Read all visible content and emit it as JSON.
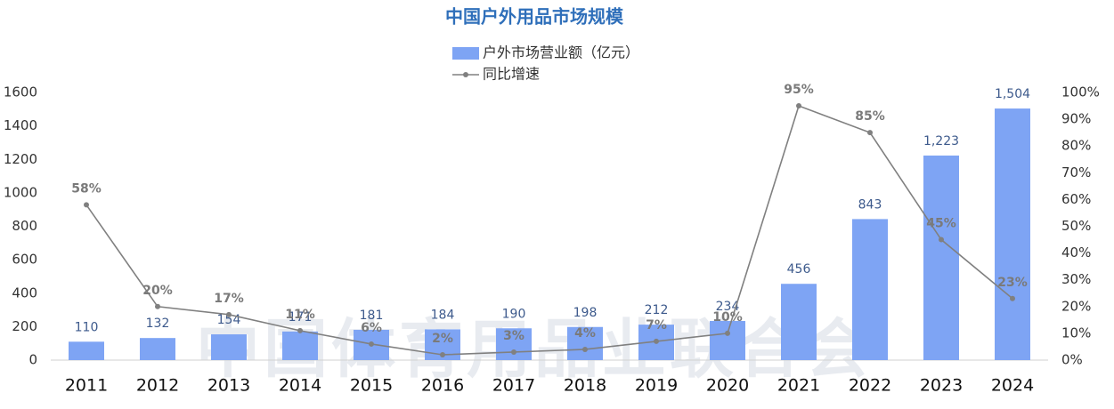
{
  "chart_data": {
    "type": "bar-line",
    "title": "中国户外用品市场规模",
    "watermark": "中国体育用品业联合会",
    "categories": [
      "2011",
      "2012",
      "2013",
      "2014",
      "2015",
      "2016",
      "2017",
      "2018",
      "2019",
      "2020",
      "2021",
      "2022",
      "2023",
      "2024"
    ],
    "series": [
      {
        "name": "户外市场营业额（亿元）",
        "type": "bar",
        "color": "#7ea4f4",
        "values": [
          110,
          132,
          154,
          171,
          181,
          184,
          190,
          198,
          212,
          234,
          456,
          843,
          1223,
          1504
        ],
        "value_labels": [
          "110",
          "132",
          "154",
          "171",
          "181",
          "184",
          "190",
          "198",
          "212",
          "234",
          "456",
          "843",
          "1,223",
          "1,504"
        ]
      },
      {
        "name": "同比增速",
        "type": "line",
        "axis": "y2",
        "color": "#808080",
        "values": [
          58,
          20,
          17,
          11,
          6,
          2,
          3,
          4,
          7,
          10,
          95,
          85,
          45,
          23
        ],
        "value_labels": [
          "58%",
          "20%",
          "17%",
          "11%",
          "6%",
          "2%",
          "3%",
          "4%",
          "7%",
          "10%",
          "95%",
          "85%",
          "45%",
          "23%"
        ]
      }
    ],
    "ylim": [
      0,
      1600
    ],
    "yticks": [
      0,
      200,
      400,
      600,
      800,
      1000,
      1200,
      1400,
      1600
    ],
    "y2lim": [
      0,
      100
    ],
    "y2ticks": [
      {
        "value": 0,
        "label": "0%"
      },
      {
        "value": 10,
        "label": "10%"
      },
      {
        "value": 20,
        "label": "20%"
      },
      {
        "value": 30,
        "label": "30%"
      },
      {
        "value": 40,
        "label": "40%"
      },
      {
        "value": 50,
        "label": "50%"
      },
      {
        "value": 60,
        "label": "60%"
      },
      {
        "value": 70,
        "label": "70%"
      },
      {
        "value": 80,
        "label": "80%"
      },
      {
        "value": 90,
        "label": "90%"
      },
      {
        "value": 100,
        "label": "100%"
      }
    ]
  }
}
